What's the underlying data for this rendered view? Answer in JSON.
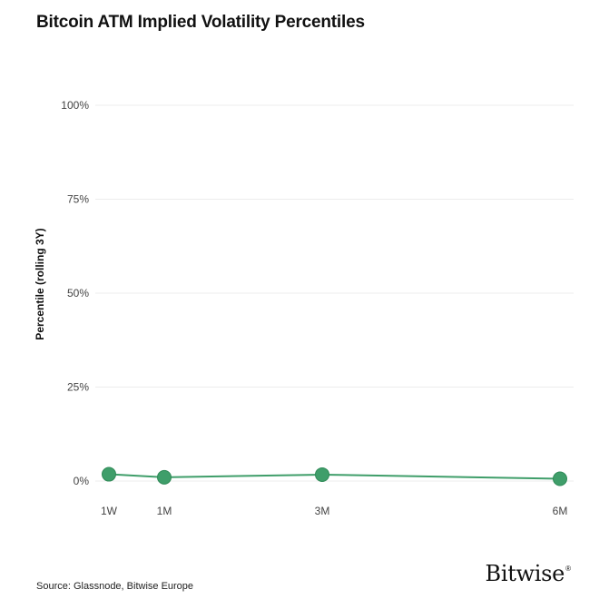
{
  "chart_data": {
    "type": "line",
    "title": "Bitcoin ATM Implied Volatility Percentiles",
    "xlabel": "",
    "ylabel": "Percentile (rolling 3Y)",
    "categories": [
      "1W",
      "1M",
      "3M",
      "6M"
    ],
    "x_positions_months": [
      0.25,
      1,
      3,
      6
    ],
    "series": [
      {
        "values": [
          1.8,
          1.0,
          1.7,
          0.6
        ]
      }
    ],
    "ylim": [
      0,
      100
    ],
    "yticks": [
      0,
      25,
      50,
      75,
      100
    ],
    "ytick_labels": [
      "0%",
      "25%",
      "50%",
      "75%",
      "100%"
    ],
    "grid": true,
    "legend": "none",
    "colors": {
      "series": "#3f9e6a",
      "marker_edge": "#2f8a57",
      "grid": "#ececec"
    }
  },
  "footer": {
    "source": "Source: Glassnode, Bitwise Europe",
    "brand": "Bitwise",
    "brand_mark": "®"
  }
}
